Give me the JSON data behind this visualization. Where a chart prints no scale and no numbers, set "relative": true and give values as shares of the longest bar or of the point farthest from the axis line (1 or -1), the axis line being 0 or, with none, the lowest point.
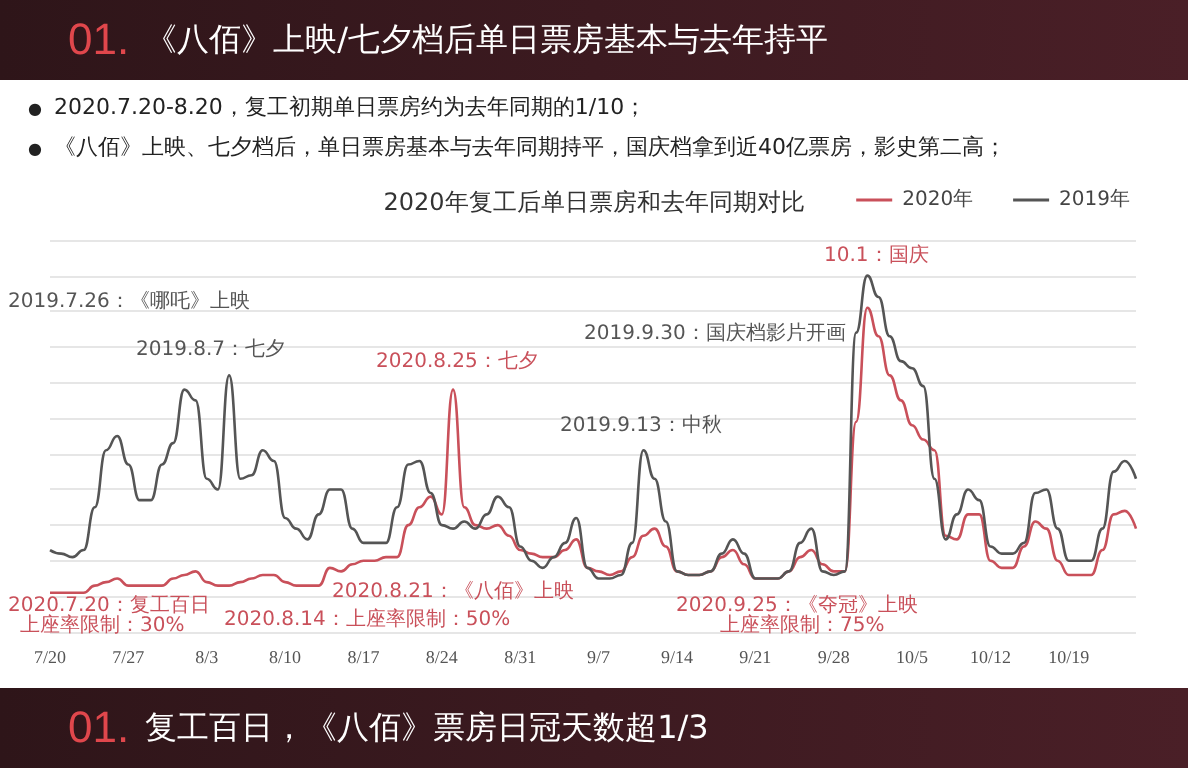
{
  "chart_data": {
    "type": "line",
    "title": "2020年复工后单日票房和去年同期对比",
    "annotations": [
      "01.",
      "《八佰》上映/七夕档后单日票房基本与去年持平",
      "●",
      "2020.7.20-8.20，复工初期单日票房约为去年同期的1/10；",
      "●",
      "《八佰》上映、七夕档后，单日票房基本与去年同期持平，国庆档拿到近40亿票房，影史第二高；",
      "2019.8.7：七夕",
      "2019.7.26：《哪吒》上映",
      "2020.8.25：七夕",
      "2020.8.21：《八佰》上映",
      "2020.7.20：复工百日",
      "上座率限制：30%",
      "2020.8.14：上座率限制：50%",
      "2019.9.13：中秋",
      "10.1：国庆",
      "2019.9.30：国庆档影片开画",
      "2020.9.25：《夺冠》上映",
      "上座率限制：75%",
      "01.",
      "复工百日，《八佰》票房日冠天数超1/3"
    ],
    "categories": [
      "7/20",
      null,
      null,
      null,
      null,
      null,
      null,
      "7/27",
      null,
      null,
      null,
      null,
      null,
      null,
      "8/3",
      null,
      null,
      null,
      null,
      null,
      null,
      "8/10",
      null,
      null,
      null,
      null,
      null,
      null,
      "8/17",
      null,
      null,
      null,
      null,
      null,
      null,
      "8/24",
      null,
      null,
      null,
      null,
      null,
      null,
      "8/31",
      null,
      null,
      null,
      null,
      null,
      null,
      "9/7",
      null,
      null,
      null,
      null,
      null,
      null,
      "9/14",
      null,
      null,
      null,
      null,
      null,
      null,
      "9/21",
      null,
      null,
      null,
      null,
      null,
      null,
      "9/28",
      null,
      null,
      null,
      null,
      null,
      null,
      "10/5",
      null,
      null,
      null,
      null,
      null,
      null,
      "10/12",
      null,
      null,
      null,
      null,
      null,
      null,
      "10/19",
      null,
      null,
      null,
      null,
      null,
      null
    ],
    "relative": true,
    "grid": "y",
    "legend": "top right",
    "series": [
      {
        "name": "2020年",
        "color": "#c9505a",
        "values": [
          0.11,
          0.11,
          0.11,
          0.11,
          0.13,
          0.14,
          0.15,
          0.13,
          0.13,
          0.13,
          0.13,
          0.15,
          0.16,
          0.17,
          0.14,
          0.13,
          0.13,
          0.14,
          0.15,
          0.16,
          0.16,
          0.14,
          0.13,
          0.13,
          0.13,
          0.18,
          0.17,
          0.19,
          0.2,
          0.2,
          0.21,
          0.21,
          0.3,
          0.35,
          0.38,
          0.33,
          0.68,
          0.35,
          0.3,
          0.29,
          0.3,
          0.27,
          0.23,
          0.22,
          0.21,
          0.21,
          0.23,
          0.26,
          0.18,
          0.17,
          0.16,
          0.17,
          0.21,
          0.27,
          0.29,
          0.24,
          0.17,
          0.16,
          0.16,
          0.17,
          0.21,
          0.23,
          0.19,
          0.15,
          0.15,
          0.15,
          0.17,
          0.21,
          0.23,
          0.19,
          0.17,
          0.17,
          0.59,
          0.91,
          0.83,
          0.72,
          0.65,
          0.58,
          0.54,
          0.51,
          0.27,
          0.26,
          0.33,
          0.33,
          0.2,
          0.18,
          0.18,
          0.24,
          0.31,
          0.29,
          0.2,
          0.16,
          0.16,
          0.16,
          0.23,
          0.33,
          0.34,
          0.29
        ]
      },
      {
        "name": "2019年",
        "color": "#555555",
        "values": [
          0.23,
          0.22,
          0.21,
          0.23,
          0.35,
          0.51,
          0.55,
          0.47,
          0.37,
          0.37,
          0.47,
          0.53,
          0.68,
          0.65,
          0.43,
          0.4,
          0.72,
          0.43,
          0.44,
          0.51,
          0.48,
          0.32,
          0.29,
          0.26,
          0.33,
          0.4,
          0.4,
          0.29,
          0.25,
          0.25,
          0.25,
          0.35,
          0.47,
          0.48,
          0.39,
          0.3,
          0.29,
          0.31,
          0.29,
          0.33,
          0.38,
          0.35,
          0.24,
          0.2,
          0.18,
          0.21,
          0.25,
          0.32,
          0.18,
          0.15,
          0.15,
          0.16,
          0.25,
          0.51,
          0.43,
          0.31,
          0.17,
          0.16,
          0.16,
          0.17,
          0.22,
          0.26,
          0.22,
          0.15,
          0.15,
          0.15,
          0.17,
          0.25,
          0.29,
          0.17,
          0.16,
          0.17,
          0.84,
          1,
          0.94,
          0.83,
          0.76,
          0.74,
          0.69,
          0.43,
          0.26,
          0.33,
          0.4,
          0.37,
          0.24,
          0.22,
          0.22,
          0.25,
          0.39,
          0.4,
          0.29,
          0.2,
          0.2,
          0.2,
          0.29,
          0.45,
          0.48,
          0.43
        ]
      }
    ]
  }
}
